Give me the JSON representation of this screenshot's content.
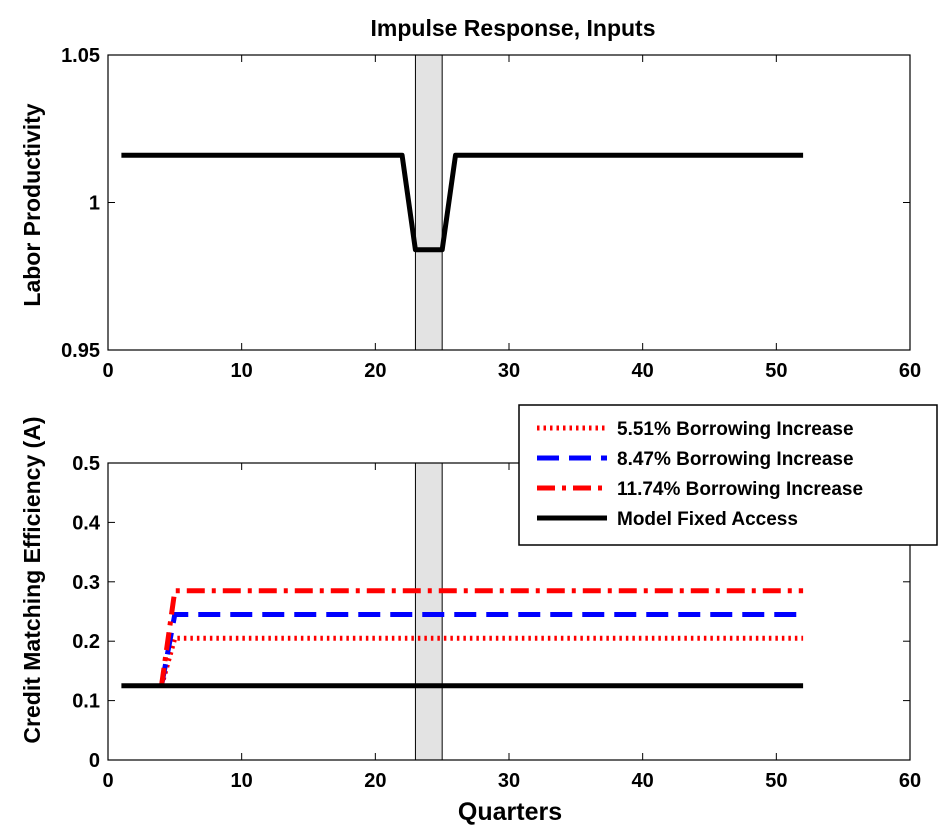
{
  "figure_title": "Impulse Response, Inputs",
  "chart_data": [
    {
      "type": "line",
      "title": "Impulse Response, Inputs",
      "xlabel": "",
      "ylabel": "Labor Productivity",
      "xlim": [
        0,
        60
      ],
      "ylim": [
        0.95,
        1.05
      ],
      "xticks": [
        "0",
        "10",
        "20",
        "30",
        "40",
        "50",
        "60"
      ],
      "yticks": [
        "0.95",
        "1",
        "1.05"
      ],
      "shaded_region": [
        23,
        25
      ],
      "grid": false,
      "series": [
        {
          "color": "#000000",
          "style": "solid",
          "x": [
            1,
            22,
            23,
            25,
            26,
            52
          ],
          "y": [
            1.016,
            1.016,
            0.984,
            0.984,
            1.016,
            1.016
          ]
        }
      ]
    },
    {
      "type": "line",
      "title": "",
      "xlabel": "Quarters",
      "ylabel": "Credit Matching Efficiency (A)",
      "xlim": [
        0,
        60
      ],
      "ylim": [
        0,
        0.5
      ],
      "xticks": [
        "0",
        "10",
        "20",
        "30",
        "40",
        "50",
        "60"
      ],
      "yticks": [
        "0",
        "0.1",
        "0.2",
        "0.3",
        "0.4",
        "0.5"
      ],
      "shaded_region": [
        23,
        25
      ],
      "grid": false,
      "legend_position": "top-right",
      "series": [
        {
          "name": "5.51% Borrowing Increase",
          "color": "#ff0000",
          "style": "dotted",
          "x": [
            4,
            5,
            52
          ],
          "y": [
            0.125,
            0.205,
            0.205
          ]
        },
        {
          "name": "8.47% Borrowing Increase",
          "color": "#0000ff",
          "style": "dashed",
          "x": [
            4,
            5,
            52
          ],
          "y": [
            0.125,
            0.245,
            0.245
          ]
        },
        {
          "name": "11.74% Borrowing Increase",
          "color": "#ff0000",
          "style": "dashdot",
          "x": [
            4,
            5,
            52
          ],
          "y": [
            0.125,
            0.285,
            0.285
          ]
        },
        {
          "name": "Model Fixed Access",
          "color": "#000000",
          "style": "solid",
          "x": [
            1,
            52
          ],
          "y": [
            0.125,
            0.125
          ]
        }
      ]
    }
  ]
}
